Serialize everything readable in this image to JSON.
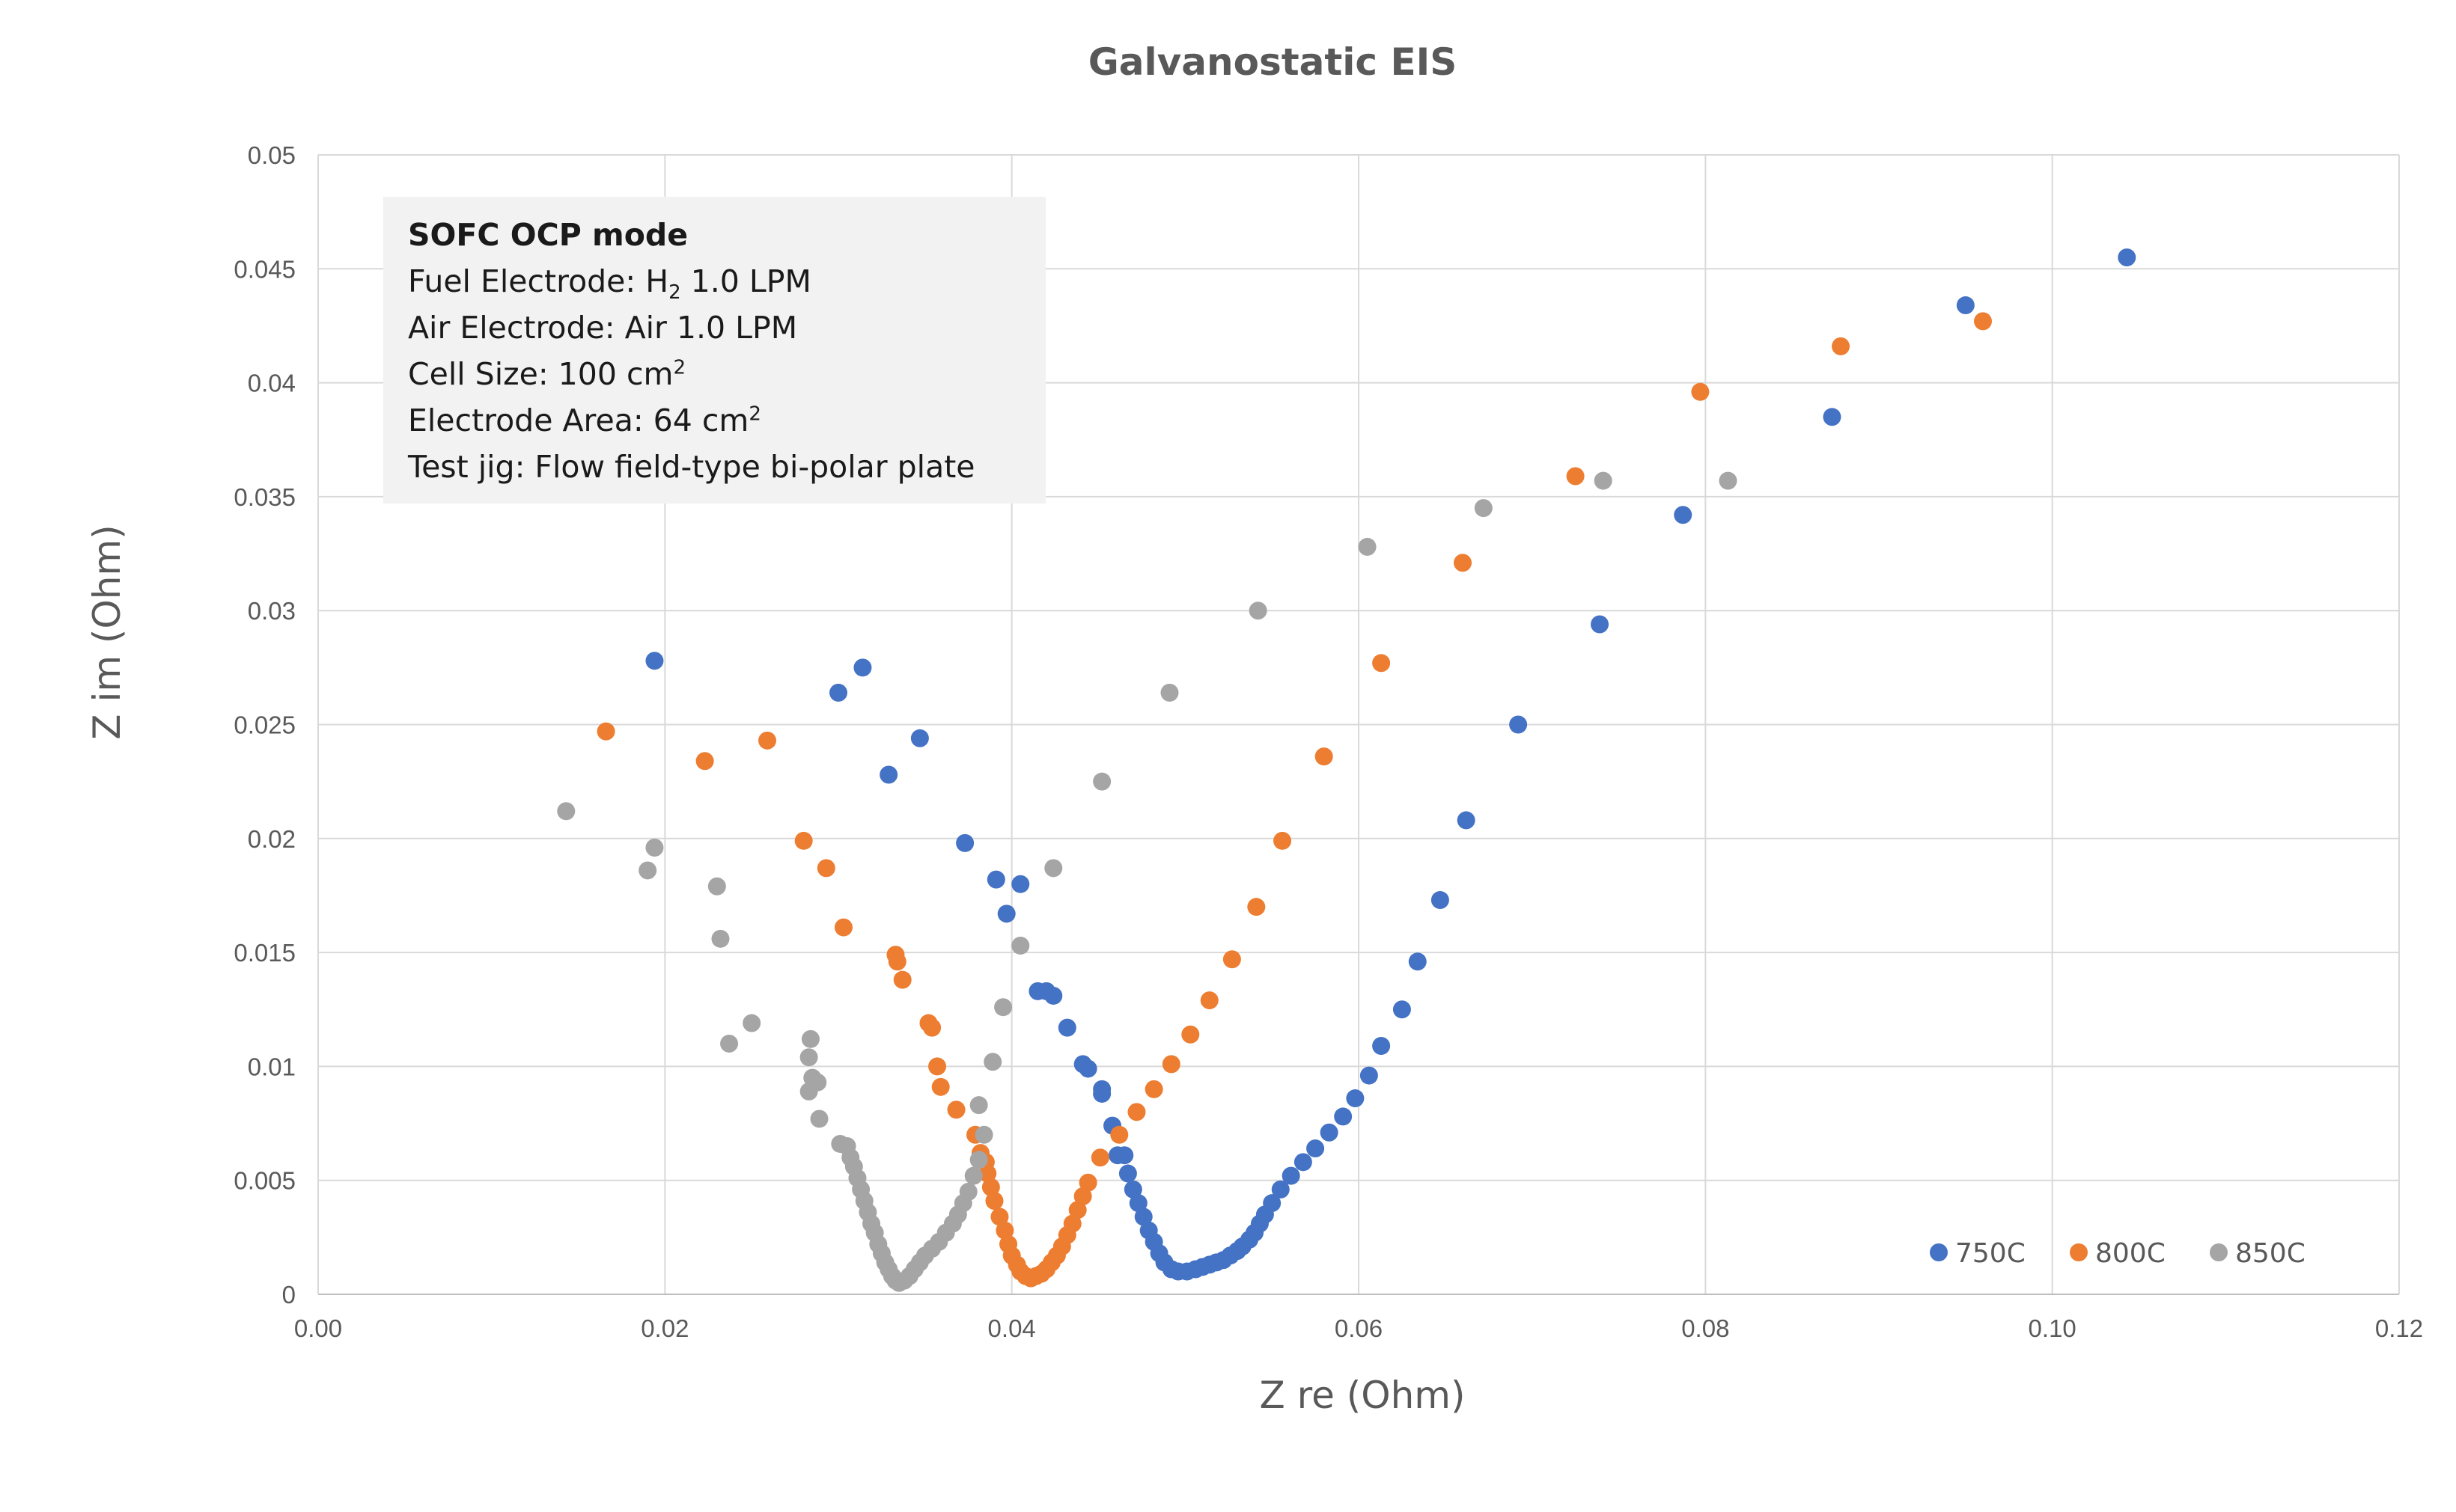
{
  "chart_data": {
    "type": "scatter",
    "title": "Galvanostatic EIS",
    "xlabel": "Z re (Ohm)",
    "ylabel": "Z im (Ohm)",
    "xlim": [
      0,
      0.12
    ],
    "ylim": [
      0,
      0.05
    ],
    "xticks": [
      0,
      0.02,
      0.04,
      0.06,
      0.08,
      0.1,
      0.12
    ],
    "xtick_labels": [
      "0.00",
      "0.02",
      "0.04",
      "0.06",
      "0.08",
      "0.10",
      "0.12"
    ],
    "yticks": [
      0,
      0.005,
      0.01,
      0.015,
      0.02,
      0.025,
      0.03,
      0.035,
      0.04,
      0.045,
      0.05
    ],
    "ytick_labels": [
      "0",
      "0.005",
      "0.01",
      "0.015",
      "0.02",
      "0.025",
      "0.03",
      "0.035",
      "0.04",
      "0.045",
      "0.05"
    ],
    "grid": true,
    "legend_position": "bottom-right",
    "series": [
      {
        "name": "750C",
        "color": "#4472c4",
        "points": [
          [
            0.0194,
            0.0278
          ],
          [
            0.03,
            0.0264
          ],
          [
            0.0314,
            0.0275
          ],
          [
            0.0347,
            0.0244
          ],
          [
            0.0329,
            0.0228
          ],
          [
            0.0373,
            0.0198
          ],
          [
            0.0391,
            0.0182
          ],
          [
            0.0405,
            0.018
          ],
          [
            0.0397,
            0.0167
          ],
          [
            0.0415,
            0.0133
          ],
          [
            0.042,
            0.0133
          ],
          [
            0.0424,
            0.0131
          ],
          [
            0.0432,
            0.0117
          ],
          [
            0.0441,
            0.0101
          ],
          [
            0.0444,
            0.0099
          ],
          [
            0.0452,
            0.009
          ],
          [
            0.0452,
            0.0088
          ],
          [
            0.0458,
            0.0074
          ],
          [
            0.0465,
            0.0061
          ],
          [
            0.0461,
            0.0061
          ],
          [
            0.0467,
            0.0053
          ],
          [
            0.047,
            0.0046
          ],
          [
            0.0473,
            0.004
          ],
          [
            0.0476,
            0.0034
          ],
          [
            0.0479,
            0.0028
          ],
          [
            0.0482,
            0.0023
          ],
          [
            0.0485,
            0.0018
          ],
          [
            0.0488,
            0.0014
          ],
          [
            0.0492,
            0.0011
          ],
          [
            0.0496,
            0.001
          ],
          [
            0.0501,
            0.001
          ],
          [
            0.0506,
            0.0011
          ],
          [
            0.051,
            0.0012
          ],
          [
            0.0514,
            0.0013
          ],
          [
            0.0518,
            0.0014
          ],
          [
            0.0522,
            0.0015
          ],
          [
            0.0526,
            0.0017
          ],
          [
            0.053,
            0.0019
          ],
          [
            0.0533,
            0.0021
          ],
          [
            0.0537,
            0.0024
          ],
          [
            0.054,
            0.0027
          ],
          [
            0.0543,
            0.0031
          ],
          [
            0.0546,
            0.0035
          ],
          [
            0.055,
            0.004
          ],
          [
            0.0555,
            0.0046
          ],
          [
            0.0561,
            0.0052
          ],
          [
            0.0568,
            0.0058
          ],
          [
            0.0575,
            0.0064
          ],
          [
            0.0583,
            0.0071
          ],
          [
            0.0591,
            0.0078
          ],
          [
            0.0598,
            0.0086
          ],
          [
            0.0606,
            0.0096
          ],
          [
            0.0613,
            0.0109
          ],
          [
            0.0625,
            0.0125
          ],
          [
            0.0634,
            0.0146
          ],
          [
            0.0647,
            0.0173
          ],
          [
            0.0662,
            0.0208
          ],
          [
            0.0692,
            0.025
          ],
          [
            0.0739,
            0.0294
          ],
          [
            0.0787,
            0.0342
          ],
          [
            0.0873,
            0.0385
          ],
          [
            0.095,
            0.0434
          ],
          [
            0.1043,
            0.0455
          ]
        ]
      },
      {
        "name": "800C",
        "color": "#ed7d31",
        "points": [
          [
            0.0166,
            0.0247
          ],
          [
            0.0223,
            0.0234
          ],
          [
            0.0259,
            0.0243
          ],
          [
            0.028,
            0.0199
          ],
          [
            0.0293,
            0.0187
          ],
          [
            0.0303,
            0.0161
          ],
          [
            0.0333,
            0.0149
          ],
          [
            0.0334,
            0.0146
          ],
          [
            0.0337,
            0.0138
          ],
          [
            0.0352,
            0.0119
          ],
          [
            0.0354,
            0.0117
          ],
          [
            0.0357,
            0.01
          ],
          [
            0.0359,
            0.0091
          ],
          [
            0.0368,
            0.0081
          ],
          [
            0.0379,
            0.007
          ],
          [
            0.0382,
            0.0062
          ],
          [
            0.0385,
            0.0058
          ],
          [
            0.0386,
            0.0053
          ],
          [
            0.0388,
            0.0047
          ],
          [
            0.039,
            0.0041
          ],
          [
            0.0393,
            0.0034
          ],
          [
            0.0396,
            0.0028
          ],
          [
            0.0398,
            0.0022
          ],
          [
            0.04,
            0.0017
          ],
          [
            0.0403,
            0.0013
          ],
          [
            0.0405,
            0.001
          ],
          [
            0.0408,
            0.0008
          ],
          [
            0.0411,
            0.0007
          ],
          [
            0.0414,
            0.0008
          ],
          [
            0.0417,
            0.0009
          ],
          [
            0.042,
            0.0011
          ],
          [
            0.0423,
            0.0014
          ],
          [
            0.0426,
            0.0017
          ],
          [
            0.0429,
            0.0021
          ],
          [
            0.0432,
            0.0026
          ],
          [
            0.0435,
            0.0031
          ],
          [
            0.0438,
            0.0037
          ],
          [
            0.0441,
            0.0043
          ],
          [
            0.0444,
            0.0049
          ],
          [
            0.0451,
            0.006
          ],
          [
            0.0462,
            0.007
          ],
          [
            0.0472,
            0.008
          ],
          [
            0.0482,
            0.009
          ],
          [
            0.0492,
            0.0101
          ],
          [
            0.0503,
            0.0114
          ],
          [
            0.0514,
            0.0129
          ],
          [
            0.0527,
            0.0147
          ],
          [
            0.0541,
            0.017
          ],
          [
            0.0556,
            0.0199
          ],
          [
            0.058,
            0.0236
          ],
          [
            0.0613,
            0.0277
          ],
          [
            0.066,
            0.0321
          ],
          [
            0.0725,
            0.0359
          ],
          [
            0.0797,
            0.0396
          ],
          [
            0.0878,
            0.0416
          ],
          [
            0.096,
            0.0427
          ]
        ]
      },
      {
        "name": "850C",
        "color": "#a5a5a5",
        "points": [
          [
            0.0143,
            0.0212
          ],
          [
            0.019,
            0.0186
          ],
          [
            0.0194,
            0.0196
          ],
          [
            0.023,
            0.0179
          ],
          [
            0.0232,
            0.0156
          ],
          [
            0.0237,
            0.011
          ],
          [
            0.025,
            0.0119
          ],
          [
            0.0284,
            0.0112
          ],
          [
            0.0283,
            0.0104
          ],
          [
            0.0285,
            0.0095
          ],
          [
            0.0288,
            0.0093
          ],
          [
            0.0283,
            0.0089
          ],
          [
            0.0289,
            0.0077
          ],
          [
            0.0301,
            0.0066
          ],
          [
            0.0305,
            0.0065
          ],
          [
            0.0307,
            0.006
          ],
          [
            0.0309,
            0.0056
          ],
          [
            0.0311,
            0.0051
          ],
          [
            0.0313,
            0.0046
          ],
          [
            0.0315,
            0.0041
          ],
          [
            0.0317,
            0.0036
          ],
          [
            0.0319,
            0.0031
          ],
          [
            0.0321,
            0.0027
          ],
          [
            0.0323,
            0.0022
          ],
          [
            0.0325,
            0.0018
          ],
          [
            0.0327,
            0.0014
          ],
          [
            0.0329,
            0.0011
          ],
          [
            0.0331,
            0.0008
          ],
          [
            0.0333,
            0.0006
          ],
          [
            0.0335,
            0.0005
          ],
          [
            0.0338,
            0.0006
          ],
          [
            0.0341,
            0.0008
          ],
          [
            0.0344,
            0.0011
          ],
          [
            0.0347,
            0.0014
          ],
          [
            0.035,
            0.0017
          ],
          [
            0.0354,
            0.002
          ],
          [
            0.0358,
            0.0023
          ],
          [
            0.0362,
            0.0027
          ],
          [
            0.0366,
            0.0031
          ],
          [
            0.0369,
            0.0035
          ],
          [
            0.0372,
            0.004
          ],
          [
            0.0375,
            0.0045
          ],
          [
            0.0378,
            0.0052
          ],
          [
            0.0381,
            0.0059
          ],
          [
            0.0384,
            0.007
          ],
          [
            0.0381,
            0.0083
          ],
          [
            0.0389,
            0.0102
          ],
          [
            0.0395,
            0.0126
          ],
          [
            0.0405,
            0.0153
          ],
          [
            0.0424,
            0.0187
          ],
          [
            0.0452,
            0.0225
          ],
          [
            0.0491,
            0.0264
          ],
          [
            0.0542,
            0.03
          ],
          [
            0.0605,
            0.0328
          ],
          [
            0.0672,
            0.0345
          ],
          [
            0.0741,
            0.0357
          ],
          [
            0.0813,
            0.0357
          ]
        ]
      }
    ]
  },
  "annotation": {
    "title": "SOFC OCP mode",
    "lines": [
      {
        "pre": "Fuel Electrode: H",
        "sub": "2",
        "post": " 1.0 LPM"
      },
      {
        "pre": "Air Electrode: Air 1.0 LPM"
      },
      {
        "pre": "Cell Size: 100 cm",
        "sup": "2"
      },
      {
        "pre": "Electrode Area: 64 cm",
        "sup": "2"
      },
      {
        "pre": "Test jig: Flow field-type bi-polar plate"
      }
    ]
  }
}
